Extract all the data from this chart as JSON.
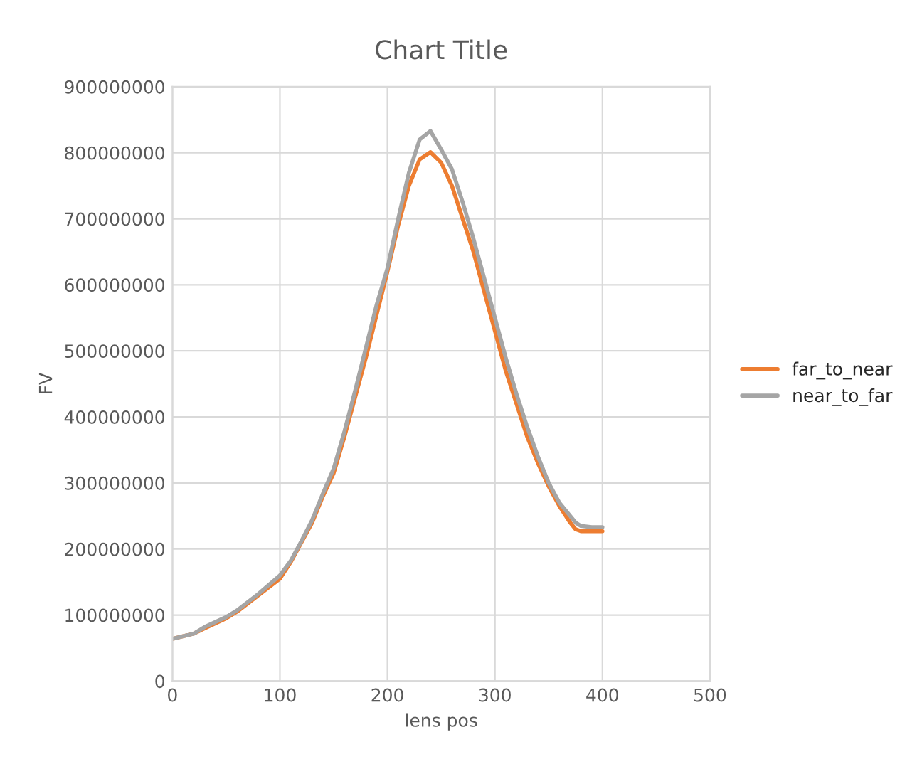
{
  "chart_data": {
    "type": "line",
    "title": "Chart Title",
    "xlabel": "lens pos",
    "ylabel": "FV",
    "x": [
      0,
      20,
      30,
      50,
      60,
      80,
      100,
      110,
      120,
      130,
      140,
      150,
      160,
      170,
      180,
      190,
      200,
      210,
      220,
      230,
      240,
      250,
      260,
      270,
      280,
      290,
      300,
      310,
      320,
      330,
      340,
      350,
      360,
      370,
      375,
      380,
      390,
      400
    ],
    "series": [
      {
        "name": "far_to_near",
        "color": "#ed7d31",
        "values": [
          64000000,
          72000000,
          80000000,
          95000000,
          105000000,
          130000000,
          155000000,
          180000000,
          210000000,
          240000000,
          280000000,
          315000000,
          370000000,
          430000000,
          490000000,
          555000000,
          620000000,
          690000000,
          750000000,
          790000000,
          801000000,
          785000000,
          750000000,
          700000000,
          650000000,
          590000000,
          530000000,
          470000000,
          420000000,
          370000000,
          330000000,
          295000000,
          265000000,
          240000000,
          230000000,
          227000000,
          227000000,
          227000000
        ]
      },
      {
        "name": "near_to_far",
        "color": "#a5a5a5",
        "values": [
          64000000,
          72000000,
          82000000,
          97000000,
          107000000,
          132000000,
          160000000,
          182000000,
          212000000,
          244000000,
          284000000,
          322000000,
          378000000,
          440000000,
          505000000,
          570000000,
          625000000,
          700000000,
          770000000,
          820000000,
          833000000,
          805000000,
          775000000,
          725000000,
          670000000,
          610000000,
          550000000,
          490000000,
          435000000,
          385000000,
          340000000,
          300000000,
          270000000,
          250000000,
          240000000,
          235000000,
          233000000,
          233000000
        ]
      }
    ],
    "xlim": [
      0,
      500
    ],
    "xticks": [
      0,
      100,
      200,
      300,
      400,
      500
    ],
    "ylim": [
      0,
      900000000
    ],
    "yticks": [
      0,
      100000000,
      200000000,
      300000000,
      400000000,
      500000000,
      600000000,
      700000000,
      800000000,
      900000000
    ],
    "grid": true,
    "legend": "right",
    "marker": "none",
    "line_style": "solid"
  }
}
